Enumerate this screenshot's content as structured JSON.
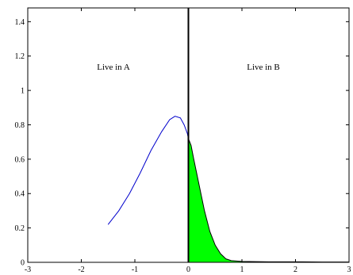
{
  "chart_data": {
    "type": "line",
    "title": "",
    "xlabel": "",
    "ylabel": "",
    "xlim": [
      -3,
      3
    ],
    "ylim": [
      0,
      1.48
    ],
    "x_ticks": [
      -3,
      -2,
      -1,
      0,
      1,
      2,
      3
    ],
    "x_tick_labels": [
      "-3",
      "-2",
      "-1",
      "0",
      "1",
      "2",
      "3"
    ],
    "y_ticks": [
      0,
      0.2,
      0.4,
      0.6,
      0.8,
      1,
      1.2,
      1.4
    ],
    "y_tick_labels": [
      "0",
      "0.2",
      "0.4",
      "0.6",
      "0.8",
      "1",
      "1.2",
      "1.4"
    ],
    "grid": false,
    "annotations": [
      {
        "text": "Live in A",
        "x": -1.4,
        "y": 1.12
      },
      {
        "text": "Live in B",
        "x": 1.4,
        "y": 1.12
      }
    ],
    "vertical_line": {
      "x": 0
    },
    "series": [
      {
        "color": "#0000cc",
        "x": [
          -1.5,
          -1.3,
          -1.1,
          -0.9,
          -0.7,
          -0.5,
          -0.35,
          -0.25,
          -0.15,
          -0.08,
          -0.02,
          0
        ],
        "y": [
          0.22,
          0.3,
          0.4,
          0.52,
          0.65,
          0.76,
          0.83,
          0.85,
          0.84,
          0.8,
          0.75,
          0.72
        ]
      },
      {
        "color": "#000000",
        "fill_color": "#00ff00",
        "x": [
          0,
          0.05,
          0.1,
          0.2,
          0.3,
          0.4,
          0.5,
          0.6,
          0.7,
          0.8,
          1.0,
          1.5,
          2.0,
          2.5,
          3.0
        ],
        "y": [
          0.72,
          0.68,
          0.6,
          0.45,
          0.3,
          0.18,
          0.1,
          0.05,
          0.02,
          0.01,
          0.005,
          0.003,
          0.003,
          0.002,
          0.002
        ]
      }
    ]
  }
}
